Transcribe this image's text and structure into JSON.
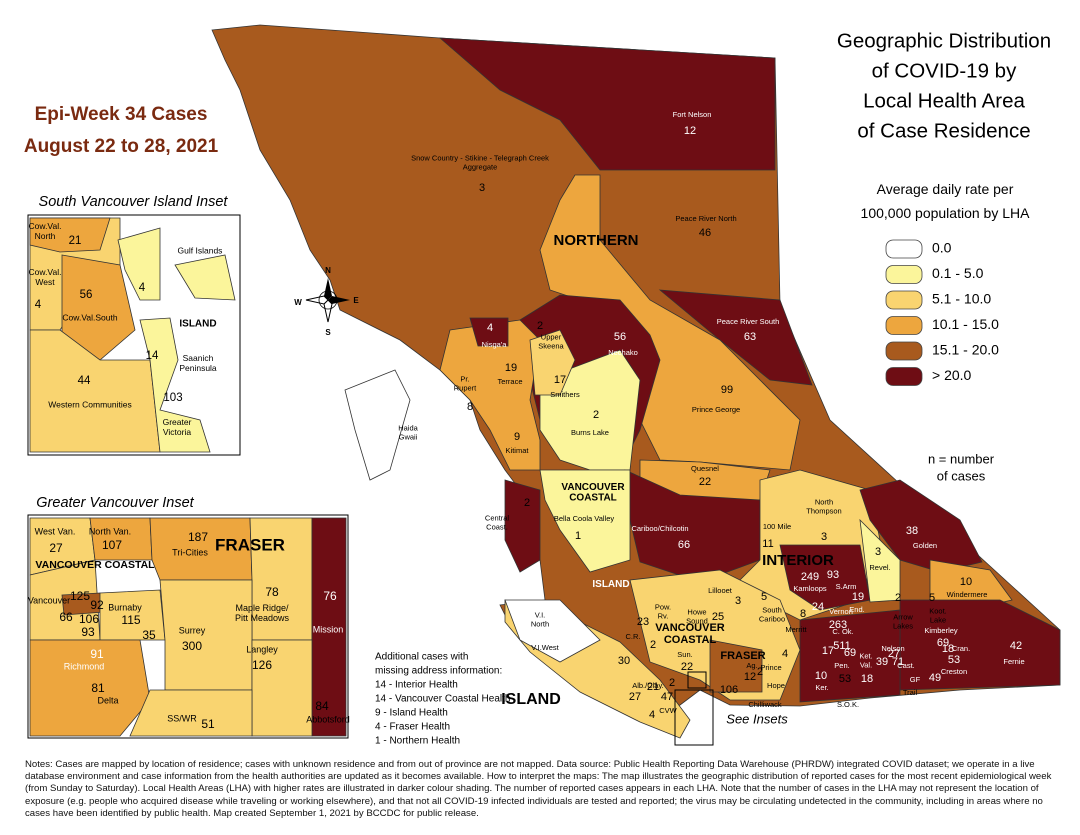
{
  "title": [
    "Geographic Distribution",
    "of COVID-19 by",
    "Local Health Area",
    "of Case Residence"
  ],
  "epi_week": [
    "Epi-Week 34 Cases",
    "August 22 to 28, 2021"
  ],
  "legend": {
    "title": [
      "Average daily rate per",
      "100,000 population by LHA"
    ],
    "items": [
      {
        "label": "0.0",
        "color": "#ffffff"
      },
      {
        "label": "0.1 - 5.0",
        "color": "#fbf59b"
      },
      {
        "label": "5.1 - 10.0",
        "color": "#f9d470"
      },
      {
        "label": "10.1 - 15.0",
        "color": "#eda63e"
      },
      {
        "label": "15.1 - 20.0",
        "color": "#a85a1e"
      },
      {
        "label": "> 20.0",
        "color": "#6e0d14"
      }
    ]
  },
  "n_note": [
    "n = number",
    "of cases"
  ],
  "compass": {
    "n": "N",
    "e": "E",
    "s": "S",
    "w": "W"
  },
  "regions": [
    [
      "NORTHERN"
    ],
    [
      "VANCOUVER",
      "COASTAL"
    ],
    [
      "INTERIOR"
    ],
    [
      "ISLAND"
    ],
    [
      "ISLAND"
    ],
    [
      "FRASER"
    ],
    [
      "VANCOUVER",
      "COASTAL"
    ]
  ],
  "lha": [
    {
      "name": "Fort Nelson",
      "cases": 12
    },
    {
      "name": [
        "Snow Country - Stikine - Telegraph Creek",
        "Aggregate"
      ],
      "cases": 3
    },
    {
      "name": "Peace River North",
      "cases": 46
    },
    {
      "name": "Peace River South",
      "cases": 63
    },
    {
      "name": "Nechako",
      "cases": 56
    },
    {
      "name": "Nisga'a",
      "cases": 4
    },
    {
      "name": [
        "Upper",
        "Skeena"
      ],
      "cases": 2
    },
    {
      "name": "Terrace",
      "cases": 19
    },
    {
      "name": "Smithers",
      "cases": 17
    },
    {
      "name": [
        "Pr.",
        "Rupert"
      ],
      "cases": 8
    },
    {
      "name": "Burns Lake",
      "cases": 2
    },
    {
      "name": "Prince George",
      "cases": 99
    },
    {
      "name": "Kitimat",
      "cases": 9
    },
    {
      "name": [
        "Haida",
        "Gwaii"
      ]
    },
    {
      "name": "Quesnel",
      "cases": 22
    },
    {
      "name": [
        "Central",
        "Coast."
      ],
      "cases": 2
    },
    {
      "name": "Bella Coola Valley",
      "cases": 1
    },
    {
      "name": "Cariboo/Chilcotin",
      "cases": 66
    },
    {
      "name": "100 Mile",
      "cases": 11
    },
    {
      "name": [
        "North",
        "Thompson"
      ],
      "cases": 3
    },
    {
      "name": "Golden",
      "cases": 38
    },
    {
      "name": "Revel.",
      "cases": 3
    },
    {
      "name": "Kamloops",
      "cases": 249
    },
    {
      "name": "S.Arm",
      "cases": 93
    },
    {
      "name": "End.",
      "cases": 19
    },
    {
      "name": "Vernon",
      "cases": 263
    },
    {
      "cases": 24
    },
    {
      "name": "C. Ok.",
      "cases": 511
    },
    {
      "name": "Pen.",
      "cases": 69
    },
    {
      "cases": 17
    },
    {
      "name": [
        "Ket.",
        "Val."
      ],
      "cases": 39
    },
    {
      "name": "Cast.",
      "cases": 27
    },
    {
      "name": "Nelson",
      "cases": 71
    },
    {
      "name": [
        "Arrow",
        "Lakes"
      ],
      "cases": 2
    },
    {
      "name": [
        "Koot.",
        "Lake"
      ],
      "cases": 5
    },
    {
      "name": "Windermere",
      "cases": 10
    },
    {
      "name": "Kimberley",
      "cases": 69
    },
    {
      "name": "Cran.",
      "cases": 18
    },
    {
      "name": "Fernie",
      "cases": 42
    },
    {
      "name": "Creston",
      "cases": 53
    },
    {
      "name": "GF",
      "cases": 49
    },
    {
      "name": "Trail"
    },
    {
      "name": "Ker.",
      "cases": 10
    },
    {
      "name": "S.O.K.",
      "cases": 53
    },
    {
      "cases": 18
    },
    {
      "name": "Lillooet",
      "cases": 3
    },
    {
      "name": [
        "South",
        "Cariboo"
      ],
      "cases": 5
    },
    {
      "name": "Merritt",
      "cases": 8
    },
    {
      "name": "Prince",
      "cases": 4
    },
    {
      "name": "Hope",
      "cases": 2
    },
    {
      "name": "Chilliwack",
      "cases": 106
    },
    {
      "name": "Ag.",
      "cases": 12
    },
    {
      "name": [
        "Howe",
        "Sound"
      ],
      "cases": 25
    },
    {
      "name": "Sun.",
      "cases": 22
    },
    {
      "name": [
        "Pow.",
        "Rv."
      ],
      "cases": 2
    },
    {
      "name": [
        "V.I.",
        "North"
      ]
    },
    {
      "name": "V.I.West"
    },
    {
      "name": "C.R.",
      "cases": 23
    },
    {
      "cases": 30
    },
    {
      "name": "Alb./Clay.",
      "cases": 27
    },
    {
      "cases": 21
    },
    {
      "cases": 47
    },
    {
      "name": "CVW",
      "cases": 4
    },
    {
      "cases": 2
    }
  ],
  "south_island_inset": {
    "title": "South Vancouver Island Inset",
    "regions": [
      "ISLAND"
    ],
    "lha": [
      {
        "name": [
          "Cow.Val.",
          "North"
        ],
        "cases": 21
      },
      {
        "name": "Gulf Islands",
        "cases": 4
      },
      {
        "name": [
          "Cow.Val.",
          "West"
        ],
        "cases": 4
      },
      {
        "name": "Cow.Val.South",
        "cases": 56
      },
      {
        "name": [
          "Saanich",
          "Peninsula"
        ],
        "cases": 14
      },
      {
        "name": "Western Communities",
        "cases": 44
      },
      {
        "name": [
          "Greater",
          "Victoria"
        ],
        "cases": 103
      }
    ]
  },
  "vancouver_inset": {
    "title": "Greater Vancouver Inset",
    "regions": [
      "VANCOUVER COASTAL",
      "FRASER"
    ],
    "lha": [
      {
        "name": "West Van.",
        "cases": 27
      },
      {
        "name": "North Van.",
        "cases": 107
      },
      {
        "name": "Tri-Cities",
        "cases": 187
      },
      {
        "name": [
          "Maple Ridge/",
          "Pitt Meadows"
        ],
        "cases": 78
      },
      {
        "name": "Mission",
        "cases": 76
      },
      {
        "name": "Vancouver",
        "cases": 125
      },
      {
        "cases": 92
      },
      {
        "cases": 66
      },
      {
        "cases": 106
      },
      {
        "cases": 93
      },
      {
        "name": "Burnaby",
        "cases": 115
      },
      {
        "cases": 35
      },
      {
        "name": "Richmond",
        "cases": 91
      },
      {
        "name": "Surrey",
        "cases": 300
      },
      {
        "name": "Langley",
        "cases": 126
      },
      {
        "name": "Delta",
        "cases": 81
      },
      {
        "name": "SS/WR",
        "cases": 51
      },
      {
        "name": "Abbotsford",
        "cases": 84
      }
    ]
  },
  "additional": [
    "Additional cases with",
    "missing address information:",
    "14 - Interior Health",
    "14 - Vancouver Coastal Health",
    "9 - Island Health",
    "4 - Fraser Health",
    "1 - Northern Health"
  ],
  "see_insets": "See Insets",
  "notes": "Notes: Cases are mapped by location of residence; cases with unknown residence and from out of province are not mapped. Data source: Public Health Reporting Data Warehouse (PHRDW) integrated COVID dataset; we operate in a live database environment and case information from the health authorities are updated as it becomes available. How to interpret the maps: The map illustrates the geographic distribution of reported cases for the most recent epidemiological week (from Sunday to Saturday). Local Health Areas (LHA) with higher rates are illustrated in darker colour shading. The number of reported cases appears in each LHA. Note that the number of cases in the LHA may not represent the location of exposure (e.g. people who acquired disease while traveling or working elsewhere), and that not all COVID-19 infected individuals are tested and reported; the virus may be circulating undetected in the community, including in areas where no cases have been identified by public health. Map created September 1, 2021 by BCCDC for public release."
}
